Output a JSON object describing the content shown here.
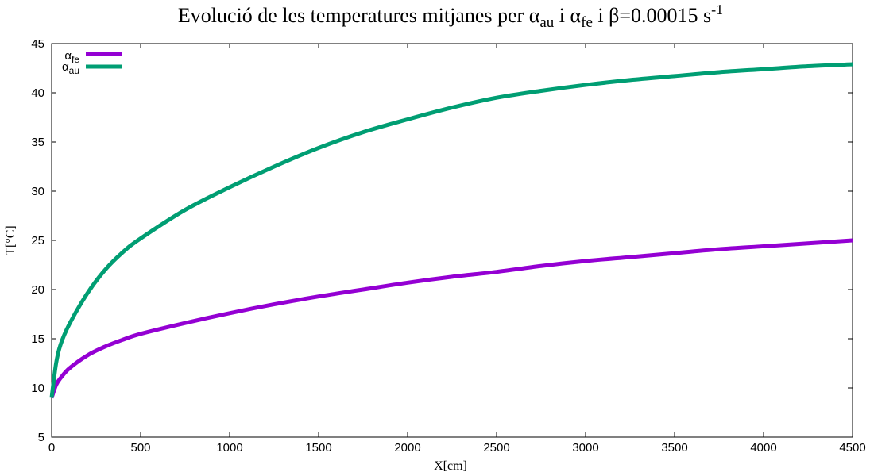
{
  "chart_data": {
    "type": "line",
    "title": {
      "prefix": "Evolució de les temperatures mitjanes per ",
      "alpha": "α",
      "sub_au": "au",
      "connector1": " i ",
      "sub_fe": "fe",
      "connector2": " i β=0.00015 s",
      "sup": "-1"
    },
    "xlabel": "X[cm]",
    "ylabel": "T[°C]",
    "xlim": [
      0,
      4500
    ],
    "ylim": [
      5,
      45
    ],
    "xticks": [
      "0",
      "500",
      "1000",
      "1500",
      "2000",
      "2500",
      "3000",
      "3500",
      "4000",
      "4500"
    ],
    "yticks": [
      "5",
      "10",
      "15",
      "20",
      "25",
      "30",
      "35",
      "40",
      "45"
    ],
    "grid": false,
    "legend_position": "top-left",
    "series": [
      {
        "name": "α_fe",
        "legend_symbol": "α",
        "legend_sub": "fe",
        "color": "#9400d3",
        "x": [
          0,
          25,
          50,
          100,
          200,
          300,
          400,
          500,
          750,
          1000,
          1250,
          1500,
          1750,
          2000,
          2250,
          2500,
          2750,
          3000,
          3250,
          3500,
          3750,
          4000,
          4250,
          4500
        ],
        "y": [
          9.0,
          10.3,
          11.0,
          12.0,
          13.3,
          14.2,
          14.9,
          15.5,
          16.6,
          17.6,
          18.5,
          19.3,
          20.0,
          20.7,
          21.3,
          21.8,
          22.4,
          22.9,
          23.3,
          23.7,
          24.1,
          24.4,
          24.7,
          25.0
        ]
      },
      {
        "name": "α_au",
        "legend_symbol": "α",
        "legend_sub": "au",
        "color": "#009e73",
        "x": [
          0,
          25,
          50,
          100,
          200,
          300,
          400,
          500,
          750,
          1000,
          1250,
          1500,
          1750,
          2000,
          2250,
          2500,
          2750,
          3000,
          3250,
          3500,
          3750,
          4000,
          4250,
          4500
        ],
        "y": [
          9.0,
          12.5,
          14.4,
          16.5,
          19.6,
          22.0,
          23.8,
          25.2,
          28.1,
          30.4,
          32.5,
          34.4,
          36.0,
          37.3,
          38.5,
          39.5,
          40.2,
          40.8,
          41.3,
          41.7,
          42.1,
          42.4,
          42.7,
          42.9
        ]
      }
    ]
  }
}
